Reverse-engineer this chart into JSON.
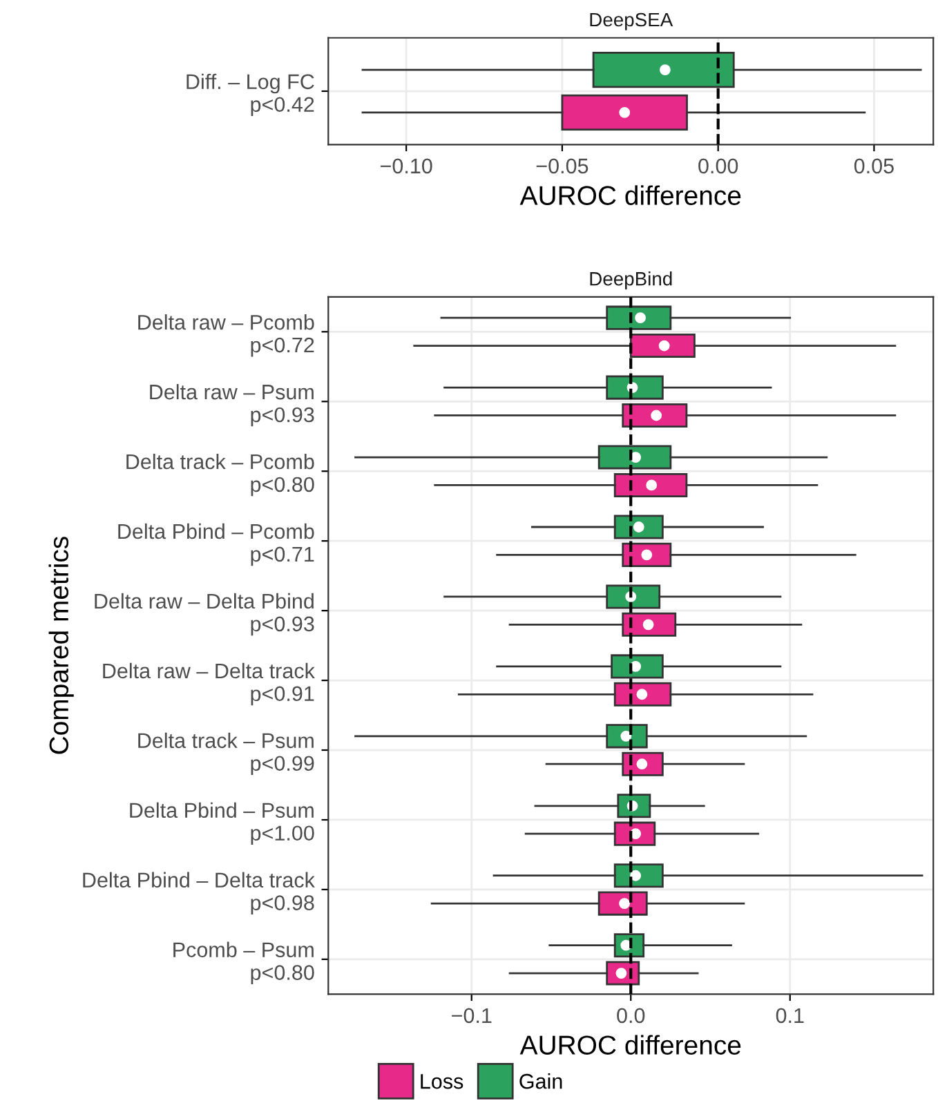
{
  "chart_data": [
    {
      "type": "box",
      "orientation": "horizontal",
      "title": "DeepSEA",
      "xlabel": "AUROC difference",
      "categories": [
        "Diff. – Log FC\np<0.42"
      ],
      "series": [
        {
          "color": "#e7298a",
          "boxes": [
            {
              "low": -0.114,
              "q1": -0.05,
              "median": -0.03,
              "q3": -0.01,
              "high": 0.047
            }
          ]
        },
        {
          "color": "#2ca25f",
          "boxes": [
            {
              "low": -0.114,
              "q1": -0.04,
              "median": -0.017,
              "q3": 0.005,
              "high": 0.065
            }
          ]
        }
      ],
      "xlim": [
        -0.125,
        0.069
      ],
      "xticks": [
        {
          "value": -0.1,
          "label": "−0.10"
        },
        {
          "value": -0.05,
          "label": "−0.05"
        },
        {
          "value": 0.0,
          "label": "0.00"
        },
        {
          "value": 0.05,
          "label": "0.05"
        }
      ],
      "ref_lines": [
        {
          "axis": "x",
          "value": 0,
          "line_style": "dashed",
          "color": "#000000"
        }
      ],
      "grid": true
    },
    {
      "type": "box",
      "orientation": "horizontal",
      "title": "DeepBind",
      "xlabel": "AUROC difference",
      "ylabel": "Compared metrics",
      "categories": [
        "Delta raw – Pcomb\np<0.72",
        "Delta raw – Psum\np<0.93",
        "Delta track – Pcomb\np<0.80",
        "Delta Pbind – Pcomb\np<0.71",
        "Delta raw – Delta Pbind\np<0.93",
        "Delta raw – Delta track\np<0.91",
        "Delta track – Psum\np<0.99",
        "Delta Pbind – Psum\np<1.00",
        "Delta Pbind – Delta track\np<0.98",
        "Pcomb – Psum\np<0.80"
      ],
      "series": [
        {
          "name": "Loss",
          "color": "#e7298a",
          "boxes": [
            {
              "low": -0.136,
              "q1": 0.0,
              "median": 0.021,
              "q3": 0.04,
              "high": 0.166
            },
            {
              "low": -0.123,
              "q1": -0.005,
              "median": 0.016,
              "q3": 0.035,
              "high": 0.166
            },
            {
              "low": -0.123,
              "q1": -0.01,
              "median": 0.013,
              "q3": 0.035,
              "high": 0.117
            },
            {
              "low": -0.084,
              "q1": -0.005,
              "median": 0.01,
              "q3": 0.025,
              "high": 0.141
            },
            {
              "low": -0.076,
              "q1": -0.005,
              "median": 0.011,
              "q3": 0.028,
              "high": 0.107
            },
            {
              "low": -0.108,
              "q1": -0.01,
              "median": 0.007,
              "q3": 0.025,
              "high": 0.114
            },
            {
              "low": -0.053,
              "q1": -0.005,
              "median": 0.007,
              "q3": 0.02,
              "high": 0.071
            },
            {
              "low": -0.066,
              "q1": -0.01,
              "median": 0.003,
              "q3": 0.015,
              "high": 0.08
            },
            {
              "low": -0.125,
              "q1": -0.02,
              "median": -0.004,
              "q3": 0.01,
              "high": 0.071
            },
            {
              "low": -0.076,
              "q1": -0.015,
              "median": -0.006,
              "q3": 0.005,
              "high": 0.042
            }
          ]
        },
        {
          "name": "Gain",
          "color": "#2ca25f",
          "boxes": [
            {
              "low": -0.119,
              "q1": -0.015,
              "median": 0.006,
              "q3": 0.025,
              "high": 0.1
            },
            {
              "low": -0.117,
              "q1": -0.015,
              "median": 0.001,
              "q3": 0.02,
              "high": 0.088
            },
            {
              "low": -0.173,
              "q1": -0.02,
              "median": 0.003,
              "q3": 0.025,
              "high": 0.123
            },
            {
              "low": -0.062,
              "q1": -0.01,
              "median": 0.005,
              "q3": 0.02,
              "high": 0.083
            },
            {
              "low": -0.117,
              "q1": -0.015,
              "median": 0.0,
              "q3": 0.018,
              "high": 0.094
            },
            {
              "low": -0.084,
              "q1": -0.012,
              "median": 0.003,
              "q3": 0.02,
              "high": 0.094
            },
            {
              "low": -0.173,
              "q1": -0.015,
              "median": -0.003,
              "q3": 0.01,
              "high": 0.11
            },
            {
              "low": -0.06,
              "q1": -0.008,
              "median": 0.001,
              "q3": 0.012,
              "high": 0.046
            },
            {
              "low": -0.086,
              "q1": -0.01,
              "median": 0.003,
              "q3": 0.02,
              "high": 0.183
            },
            {
              "low": -0.051,
              "q1": -0.01,
              "median": -0.003,
              "q3": 0.008,
              "high": 0.063
            }
          ]
        }
      ],
      "xlim": [
        -0.19,
        0.19
      ],
      "xticks": [
        {
          "value": -0.1,
          "label": "−0.1"
        },
        {
          "value": 0.0,
          "label": "0.0"
        },
        {
          "value": 0.1,
          "label": "0.1"
        }
      ],
      "ref_lines": [
        {
          "axis": "x",
          "value": 0,
          "line_style": "dashed",
          "color": "#000000"
        }
      ],
      "grid": true,
      "legend": "bottom"
    }
  ]
}
